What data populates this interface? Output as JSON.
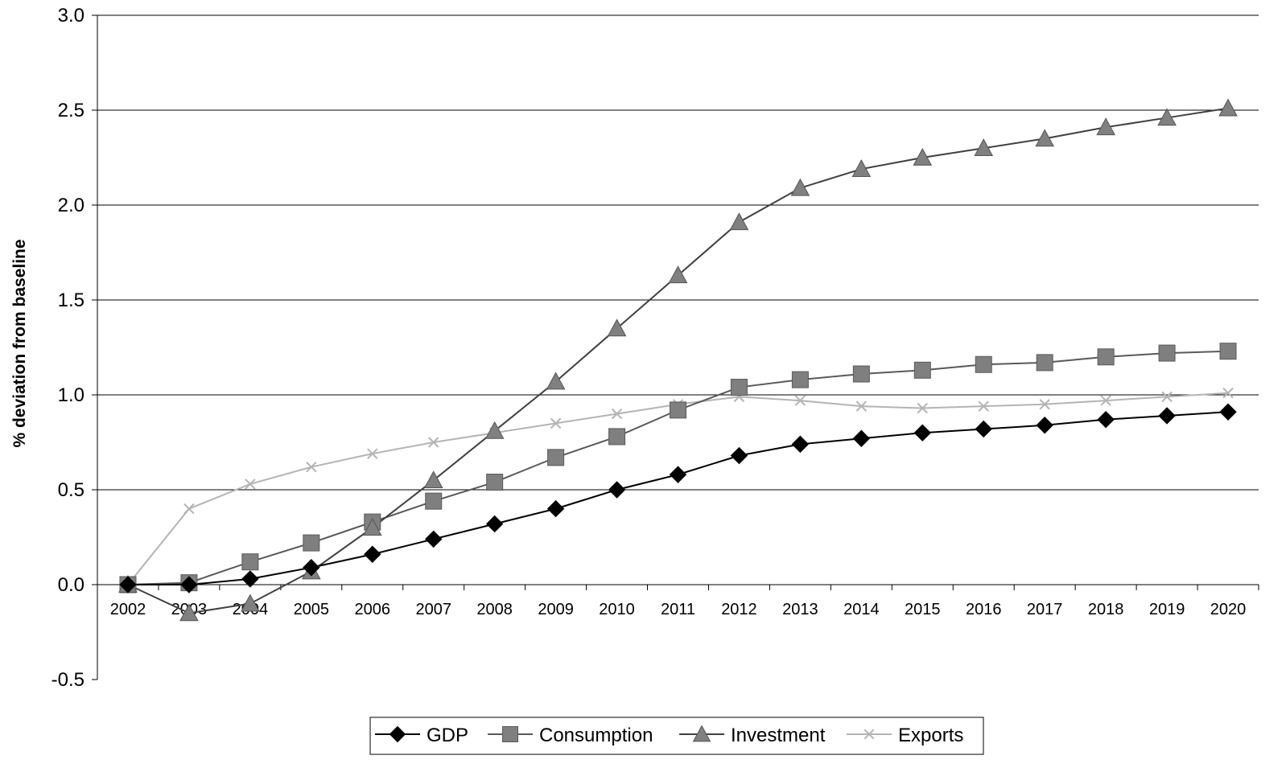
{
  "chart_data": {
    "type": "line",
    "title": "",
    "xlabel": "",
    "ylabel": "% deviation from baseline",
    "ylim": [
      -0.5,
      3.0
    ],
    "y_ticks": [
      "-0.5",
      "0.0",
      "0.5",
      "1.0",
      "1.5",
      "2.0",
      "2.5",
      "3.0"
    ],
    "y_tick_values": [
      -0.5,
      0.0,
      0.5,
      1.0,
      1.5,
      2.0,
      2.5,
      3.0
    ],
    "grid": true,
    "legend_position": "bottom",
    "categories": [
      "2002",
      "2003",
      "2004",
      "2005",
      "2006",
      "2007",
      "2008",
      "2009",
      "2010",
      "2011",
      "2012",
      "2013",
      "2014",
      "2015",
      "2016",
      "2017",
      "2018",
      "2019",
      "2020"
    ],
    "series": [
      {
        "name": "GDP",
        "marker": "diamond",
        "color": "#000000",
        "line_color": "#000000",
        "values": [
          0.0,
          0.0,
          0.03,
          0.09,
          0.16,
          0.24,
          0.32,
          0.4,
          0.5,
          0.58,
          0.68,
          0.74,
          0.77,
          0.8,
          0.82,
          0.84,
          0.87,
          0.89,
          0.91
        ]
      },
      {
        "name": "Consumption",
        "marker": "square",
        "color": "#7f7f7f",
        "line_color": "#595959",
        "values": [
          0.0,
          0.01,
          0.12,
          0.22,
          0.33,
          0.44,
          0.54,
          0.67,
          0.78,
          0.92,
          1.04,
          1.08,
          1.11,
          1.13,
          1.16,
          1.17,
          1.2,
          1.22,
          1.23
        ]
      },
      {
        "name": "Investment",
        "marker": "triangle",
        "color": "#808080",
        "line_color": "#404040",
        "values": [
          0.0,
          -0.15,
          -0.1,
          0.07,
          0.3,
          0.55,
          0.81,
          1.07,
          1.35,
          1.63,
          1.91,
          2.09,
          2.19,
          2.25,
          2.3,
          2.35,
          2.41,
          2.46,
          2.51
        ]
      },
      {
        "name": "Exports",
        "marker": "x",
        "color": "#b4b4b4",
        "line_color": "#b4b4b4",
        "values": [
          0.0,
          0.4,
          0.53,
          0.62,
          0.69,
          0.75,
          0.8,
          0.85,
          0.9,
          0.95,
          0.99,
          0.97,
          0.94,
          0.93,
          0.94,
          0.95,
          0.97,
          0.99,
          1.01
        ]
      }
    ]
  }
}
